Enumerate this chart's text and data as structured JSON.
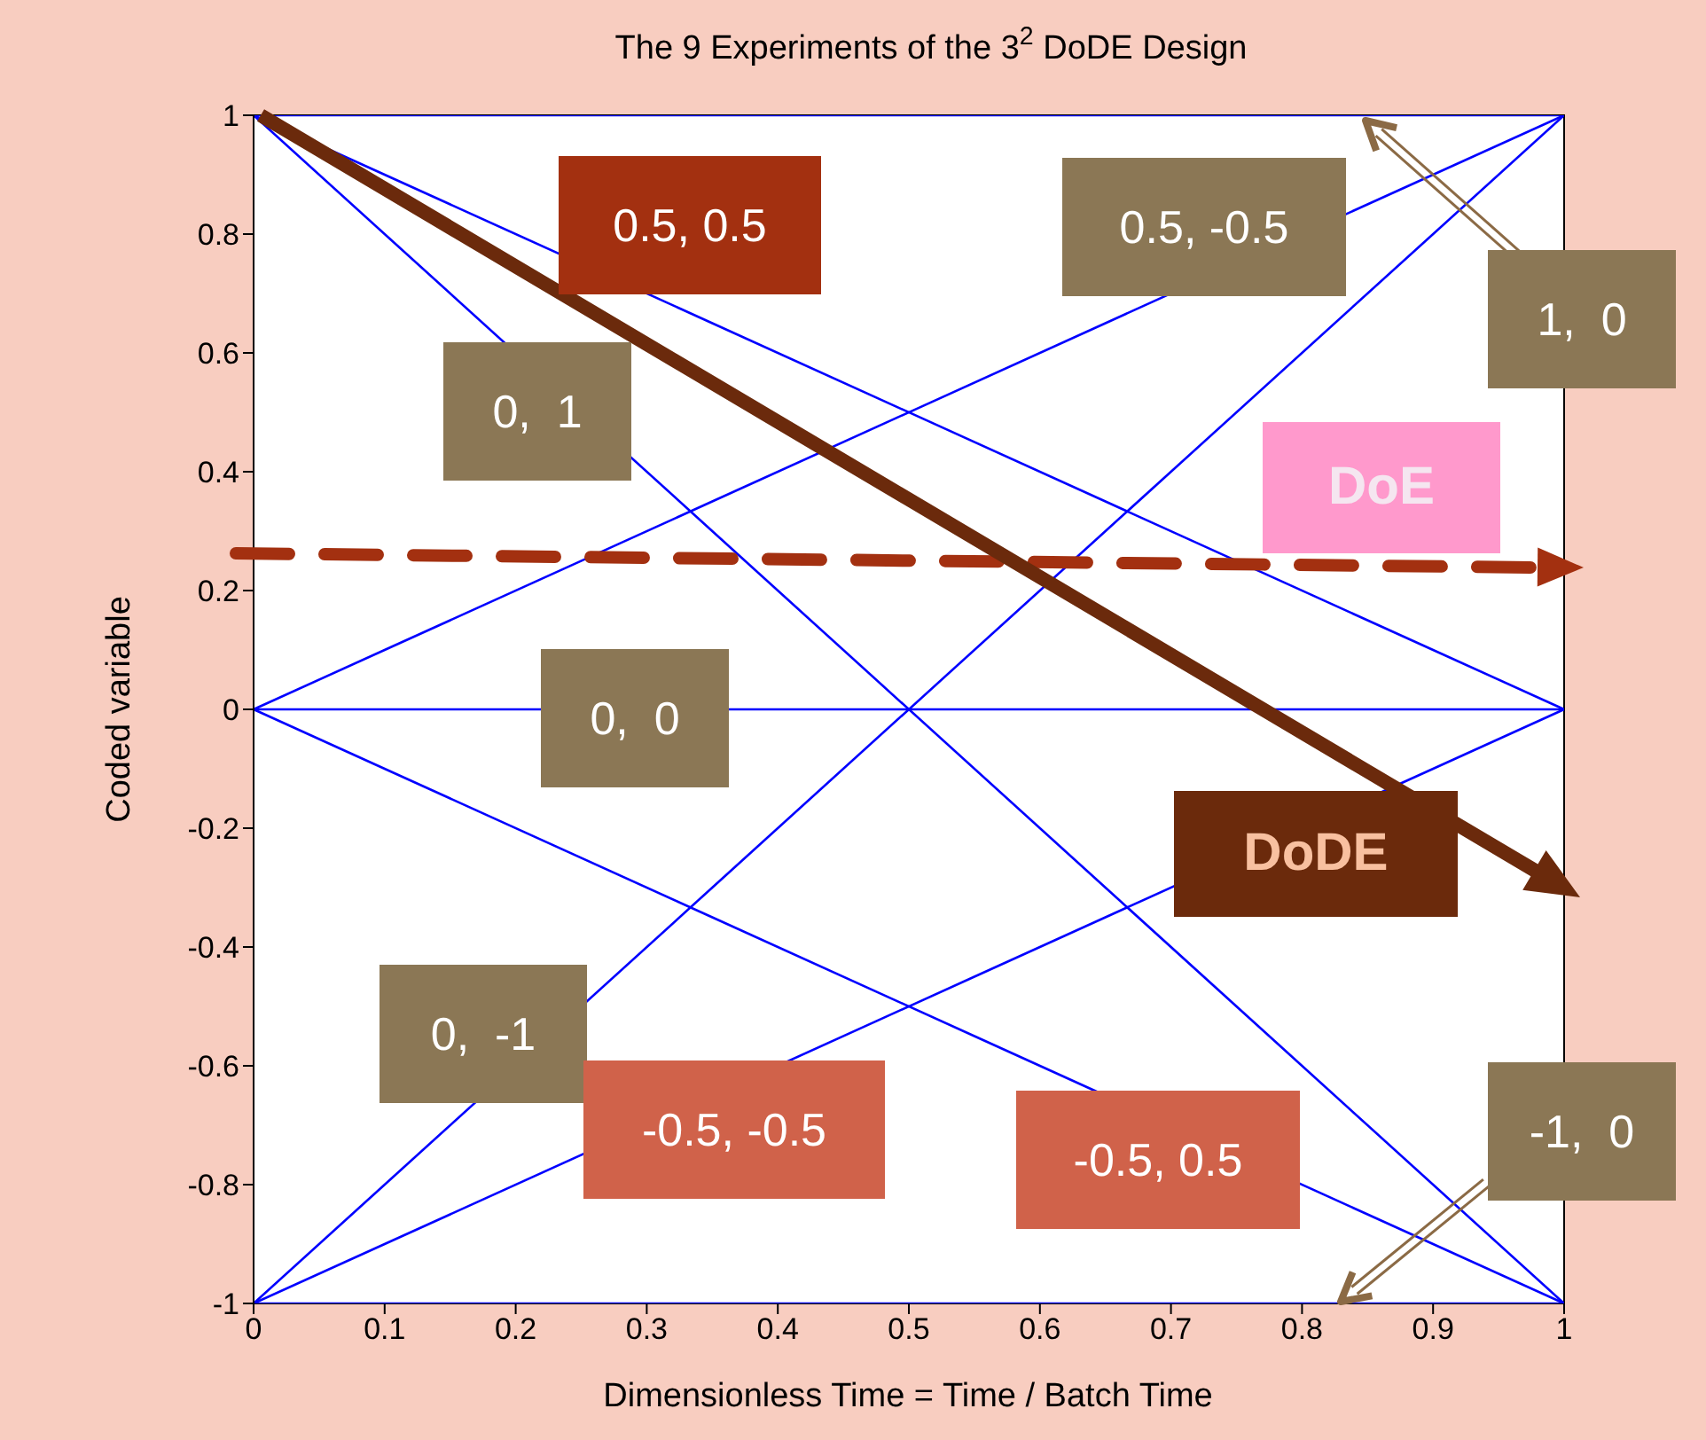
{
  "chart_data": {
    "type": "line",
    "title": "The 9 Experiments of the 3$^{2}$  DoDE Design",
    "xlabel": "Dimensionless Time = Time / Batch Time",
    "ylabel": "Coded variable",
    "x": [
      0,
      0.1,
      0.35,
      0.65,
      0.9,
      1
    ],
    "series": [
      {
        "color": "#0000ff",
        "values": [
          1,
          1,
          1,
          1,
          1,
          1
        ]
      },
      {
        "color": "#0000ff",
        "values": [
          -1,
          -1,
          -1,
          -1,
          -1,
          -1
        ]
      },
      {
        "color": "#0000ff",
        "x": [
          0,
          0.1,
          0.45,
          0.65,
          0.9,
          1
        ],
        "values": [
          0,
          0,
          0,
          0,
          0,
          0
        ]
      },
      {
        "color": "#0000ff",
        "values": [
          1,
          0.8,
          0.3,
          -0.3,
          -0.8,
          -1
        ]
      },
      {
        "color": "#0000ff",
        "values": [
          -1,
          -0.8,
          -0.3,
          0.3,
          0.8,
          1
        ]
      },
      {
        "color": "#0000ff",
        "values": [
          0,
          0.1,
          0.35,
          0.65,
          0.9,
          1
        ]
      },
      {
        "color": "#0000ff",
        "x": [
          0,
          0.1,
          0.35,
          0.55,
          0.9,
          1
        ],
        "values": [
          0,
          -0.1,
          -0.35,
          -0.55,
          -0.9,
          -1
        ]
      },
      {
        "color": "#0000ff",
        "values": [
          1,
          0.9,
          0.65,
          0.35,
          0.1,
          0
        ]
      },
      {
        "color": "#0000ff",
        "x": [
          0,
          0.1,
          0.55,
          0.65,
          0.9,
          1
        ],
        "values": [
          -1,
          -0.9,
          -0.45,
          -0.35,
          -0.1,
          0
        ]
      }
    ],
    "xlim": [
      0,
      1
    ],
    "xticks": [
      0,
      0.1,
      0.2,
      0.3,
      0.4,
      0.5,
      0.6,
      0.7,
      0.8,
      0.9,
      1
    ],
    "ylim": [
      -1,
      1
    ],
    "yticks": [
      -1,
      -0.8,
      -0.6,
      -0.4,
      -0.2,
      0,
      0.2,
      0.4,
      0.6,
      0.8,
      1
    ],
    "grid": false,
    "marker": "none",
    "line_style": "solid",
    "annotations": [
      "0.5, 0.5",
      "0.5, -0.5",
      "1,  0",
      "0,  1",
      "DoE",
      "0,  0",
      "DoDE",
      "0,  -1",
      "-0.5, -0.5",
      "-0.5, 0.5",
      "-1,  0"
    ]
  }
}
